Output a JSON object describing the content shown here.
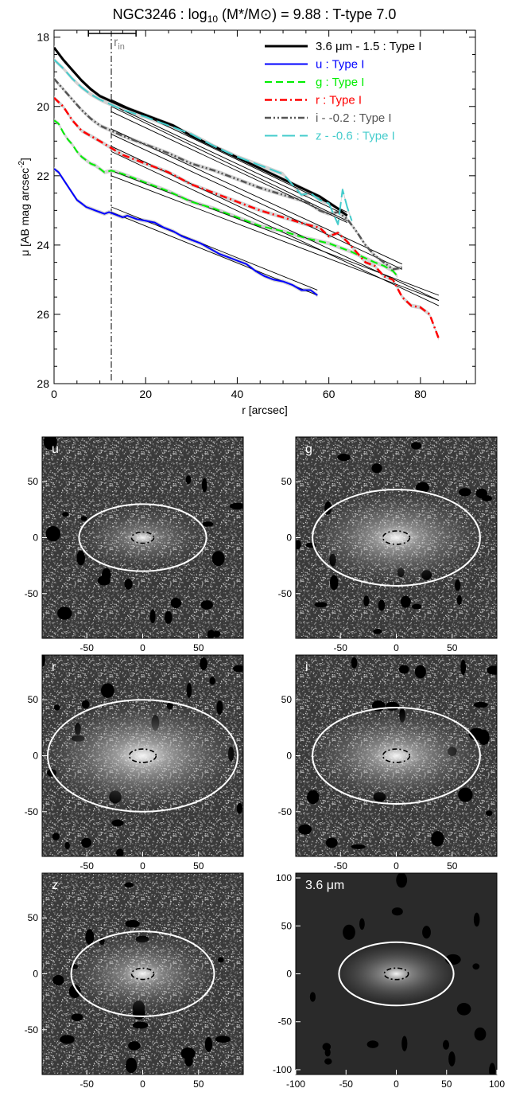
{
  "chart_data": [
    {
      "type": "line",
      "title": "NGC3246 : log10 (M*/M⊙) = 9.88 : T-type 7.0",
      "title_parts": {
        "main": "NGC3246 : log",
        "sub": "10",
        "rest": " (M*/M⊙) = 9.88 : T-type 7.0"
      },
      "xlabel": "r [arcsec]",
      "ylabel": "μ [AB mag arcsec⁻²]",
      "ylabel_parts": {
        "main": "μ [AB mag arcsec",
        "sup": "-2",
        "end": "]"
      },
      "xlim": [
        0,
        92
      ],
      "ylim": [
        28,
        17.8
      ],
      "y_inverted": true,
      "xticks": [
        0,
        20,
        40,
        60,
        80
      ],
      "yticks": [
        18,
        20,
        22,
        24,
        26,
        28
      ],
      "r_in": 12.5,
      "r_in_label": "r",
      "r_in_sub": "in",
      "r_in_errbar": [
        7.5,
        17.9
      ],
      "legend_position": "top-right",
      "series": [
        {
          "name": "3.6 μm - 1.5 : Type I",
          "color": "#000000",
          "dash": "solid",
          "width": 3,
          "x": [
            0,
            2,
            4,
            6,
            8,
            10,
            12.5,
            15,
            18,
            22,
            26,
            30,
            34,
            38,
            42,
            46,
            50,
            54,
            58,
            62,
            64
          ],
          "y": [
            18.3,
            18.65,
            18.95,
            19.25,
            19.5,
            19.7,
            19.85,
            20.0,
            20.15,
            20.35,
            20.55,
            20.85,
            21.1,
            21.35,
            21.6,
            21.85,
            22.1,
            22.35,
            22.6,
            22.95,
            23.15
          ],
          "fit": [
            [
              12.5,
              19.8
            ],
            [
              64,
              23.05
            ]
          ],
          "fit2": [
            [
              12.5,
              20.0
            ],
            [
              64,
              23.3
            ]
          ]
        },
        {
          "name": "u : Type I",
          "color": "#0000ff",
          "dash": "solid",
          "width": 2,
          "x": [
            0,
            1,
            2,
            3,
            4,
            5,
            6,
            7,
            8,
            9,
            10,
            11,
            12,
            13,
            14,
            15,
            16,
            18,
            20,
            22,
            24,
            26,
            28,
            30,
            32,
            34,
            36,
            38,
            40,
            42,
            44,
            46,
            48,
            50,
            52,
            54,
            56,
            57.5
          ],
          "y": [
            21.8,
            21.9,
            22.1,
            22.3,
            22.5,
            22.7,
            22.8,
            22.9,
            22.95,
            23.0,
            23.05,
            23.1,
            23.05,
            23.1,
            23.15,
            23.2,
            23.15,
            23.25,
            23.3,
            23.35,
            23.5,
            23.6,
            23.75,
            23.85,
            23.95,
            24.1,
            24.25,
            24.35,
            24.45,
            24.55,
            24.75,
            24.9,
            25.0,
            25.05,
            25.15,
            25.3,
            25.3,
            25.45
          ],
          "fit": [
            [
              12.5,
              22.9
            ],
            [
              57.5,
              25.3
            ]
          ],
          "fit2": [
            [
              12.5,
              23.05
            ],
            [
              57.5,
              25.45
            ]
          ]
        },
        {
          "name": "g : Type I",
          "color": "#00ee00",
          "dash": "dashed",
          "width": 2,
          "x": [
            0,
            1,
            2,
            3,
            4,
            5,
            6,
            7,
            8,
            9,
            10,
            11,
            12.5,
            15,
            20,
            25,
            30,
            35,
            40,
            45,
            50,
            55,
            60,
            65,
            70,
            72,
            74,
            75
          ],
          "y": [
            20.4,
            20.5,
            20.75,
            20.95,
            21.1,
            21.3,
            21.45,
            21.55,
            21.65,
            21.7,
            21.8,
            21.9,
            21.85,
            21.95,
            22.2,
            22.45,
            22.75,
            22.95,
            23.2,
            23.45,
            23.6,
            23.8,
            23.95,
            24.2,
            24.5,
            24.6,
            24.75,
            24.9
          ],
          "fit": [
            [
              12.5,
              21.85
            ],
            [
              84,
              25.45
            ]
          ],
          "fit2": [
            [
              12.5,
              22.0
            ],
            [
              84,
              25.6
            ]
          ]
        },
        {
          "name": "r : Type I",
          "color": "#ff0000",
          "dash": "dashdot",
          "width": 2.5,
          "x": [
            0,
            2,
            4,
            6,
            8,
            10,
            12.5,
            15,
            20,
            25,
            30,
            35,
            40,
            45,
            50,
            55,
            58,
            60,
            62,
            64,
            66,
            68,
            70,
            72,
            74,
            76,
            78,
            80,
            82,
            84
          ],
          "y": [
            19.75,
            20.0,
            20.4,
            20.7,
            20.85,
            21.0,
            21.2,
            21.4,
            21.65,
            21.9,
            22.25,
            22.5,
            22.75,
            23.0,
            23.2,
            23.4,
            23.5,
            23.75,
            23.65,
            23.9,
            24.2,
            24.5,
            24.6,
            24.9,
            25.0,
            25.5,
            25.75,
            25.8,
            26.0,
            26.7
          ],
          "fit": [
            [
              12.5,
              21.15
            ],
            [
              84,
              25.6
            ]
          ],
          "fit2": [
            [
              12.5,
              21.3
            ],
            [
              84,
              25.75
            ]
          ]
        },
        {
          "name": "i - -0.2 : Type I",
          "color": "#555555",
          "dash": "dashdotdot",
          "width": 2.5,
          "x": [
            0,
            2,
            4,
            6,
            8,
            10,
            12.5,
            15,
            20,
            25,
            30,
            35,
            40,
            45,
            50,
            55,
            58,
            60,
            62,
            64,
            66,
            68,
            70,
            72,
            74,
            76
          ],
          "y": [
            19.2,
            19.5,
            19.8,
            20.1,
            20.35,
            20.55,
            20.7,
            20.85,
            21.1,
            21.35,
            21.65,
            21.85,
            22.1,
            22.35,
            22.55,
            22.75,
            23.0,
            23.1,
            23.05,
            23.25,
            23.6,
            24.0,
            24.3,
            24.5,
            24.7,
            24.65
          ],
          "fit": [
            [
              12.5,
              20.65
            ],
            [
              76,
              24.55
            ]
          ],
          "fit2": [
            [
              12.5,
              20.8
            ],
            [
              76,
              24.7
            ]
          ]
        },
        {
          "name": "z - -0.6 : Type I",
          "color": "#44cccc",
          "dash": "longdash",
          "width": 2,
          "x": [
            0,
            2,
            4,
            6,
            8,
            10,
            12.5,
            15,
            20,
            25,
            30,
            35,
            40,
            45,
            50,
            52,
            54,
            56,
            58,
            60,
            61,
            62,
            63,
            64,
            65
          ],
          "y": [
            18.65,
            18.9,
            19.2,
            19.45,
            19.65,
            19.8,
            19.95,
            20.1,
            20.3,
            20.55,
            20.8,
            21.15,
            21.45,
            21.7,
            21.95,
            22.25,
            22.55,
            22.5,
            22.7,
            22.8,
            23.1,
            23.4,
            22.4,
            22.9,
            23.3
          ],
          "fit": [
            [
              12.5,
              19.95
            ],
            [
              64,
              23.15
            ]
          ],
          "fit2": [
            [
              12.5,
              20.15
            ],
            [
              64,
              23.35
            ]
          ]
        }
      ]
    },
    {
      "type": "image-panel-grid",
      "panels": [
        {
          "label": "u",
          "xticks": [
            -50,
            0,
            50
          ],
          "yticks": [
            50,
            0,
            -50
          ],
          "xlim": [
            -90,
            90
          ],
          "ylim": [
            -90,
            90
          ],
          "show_xticks": true,
          "outer_ellipse": {
            "a": 57,
            "b": 30
          },
          "inner_ellipse": {
            "a": 10,
            "b": 5
          },
          "brightness": 0.5
        },
        {
          "label": "g",
          "xticks": [
            -50,
            0,
            50
          ],
          "yticks": [
            50,
            0,
            -50
          ],
          "xlim": [
            -90,
            90
          ],
          "ylim": [
            -90,
            90
          ],
          "show_xticks": true,
          "outer_ellipse": {
            "a": 75,
            "b": 43
          },
          "inner_ellipse": {
            "a": 12,
            "b": 6
          },
          "brightness": 0.75
        },
        {
          "label": "r",
          "xticks": [
            -50,
            0,
            50
          ],
          "yticks": [
            50,
            0,
            -50
          ],
          "xlim": [
            -90,
            90
          ],
          "ylim": [
            -90,
            90
          ],
          "show_xticks": true,
          "outer_ellipse": {
            "a": 85,
            "b": 50
          },
          "inner_ellipse": {
            "a": 12,
            "b": 6
          },
          "brightness": 0.85
        },
        {
          "label": "i",
          "xticks": [
            -50,
            0,
            50
          ],
          "yticks": [
            50,
            0,
            -50
          ],
          "xlim": [
            -90,
            90
          ],
          "ylim": [
            -90,
            90
          ],
          "show_xticks": true,
          "outer_ellipse": {
            "a": 75,
            "b": 43
          },
          "inner_ellipse": {
            "a": 12,
            "b": 6
          },
          "brightness": 0.75
        },
        {
          "label": "z",
          "xticks": [
            -50,
            0,
            50
          ],
          "yticks": [
            50,
            0,
            -50
          ],
          "xlim": [
            -90,
            90
          ],
          "ylim": [
            -90,
            90
          ],
          "show_xticks": true,
          "outer_ellipse": {
            "a": 64,
            "b": 38
          },
          "inner_ellipse": {
            "a": 10,
            "b": 5
          },
          "brightness": 0.65
        },
        {
          "label": "3.6 μm",
          "xticks": [
            -100,
            -50,
            0,
            50,
            100
          ],
          "yticks": [
            100,
            50,
            0,
            -50,
            -100
          ],
          "xlim": [
            -100,
            100
          ],
          "ylim": [
            -105,
            105
          ],
          "show_xticks": true,
          "outer_ellipse": {
            "a": 57,
            "b": 33
          },
          "inner_ellipse": {
            "a": 12,
            "b": 6
          },
          "brightness": 0.7
        }
      ]
    }
  ]
}
